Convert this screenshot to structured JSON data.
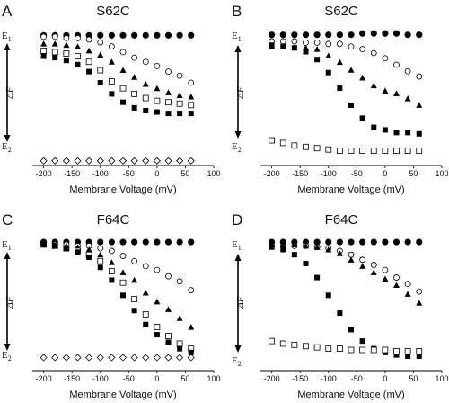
{
  "figure": {
    "panels": [
      {
        "letter": "A",
        "title": "S62C"
      },
      {
        "letter": "B",
        "title": "S62C"
      },
      {
        "letter": "C",
        "title": "F64C"
      },
      {
        "letter": "D",
        "title": "F64C"
      }
    ],
    "energy_labels": {
      "top": "E1",
      "bottom": "E2"
    },
    "delta_f_label": "ΔF"
  },
  "chart_data": [
    {
      "type": "scatter",
      "panel": "A",
      "title": "S62C",
      "xlabel": "Membrane Voltage (mV)",
      "ylabel": "",
      "xlim": [
        -220,
        100
      ],
      "ylim": [
        0.95,
        -0.05
      ],
      "xticks": [
        -200,
        -150,
        -100,
        -50,
        0,
        50,
        100
      ],
      "series": [
        {
          "marker": "filled-circle",
          "x": [
            -200,
            -180,
            -160,
            -140,
            -120,
            -100,
            -80,
            -60,
            -40,
            -20,
            0,
            20,
            40,
            60
          ],
          "y": [
            0.01,
            0.01,
            0.01,
            0.01,
            0.01,
            0.01,
            0.01,
            0.01,
            0.01,
            0.01,
            0.01,
            0.01,
            0.01,
            0.01
          ]
        },
        {
          "marker": "open-circle",
          "x": [
            -200,
            -180,
            -160,
            -140,
            -120,
            -100,
            -80,
            -60,
            -40,
            -20,
            0,
            20,
            40,
            60
          ],
          "y": [
            0.02,
            0.02,
            0.03,
            0.03,
            0.04,
            0.06,
            0.09,
            0.13,
            0.17,
            0.2,
            0.23,
            0.27,
            0.3,
            0.35
          ]
        },
        {
          "marker": "filled-triangle",
          "x": [
            -200,
            -180,
            -160,
            -140,
            -120,
            -100,
            -80,
            -60,
            -40,
            -20,
            0,
            20,
            40,
            60
          ],
          "y": [
            0.07,
            0.07,
            0.08,
            0.09,
            0.12,
            0.15,
            0.2,
            0.26,
            0.31,
            0.36,
            0.39,
            0.42,
            0.44,
            0.45
          ]
        },
        {
          "marker": "open-square",
          "x": [
            -200,
            -180,
            -160,
            -140,
            -120,
            -100,
            -80,
            -60,
            -40,
            -20,
            0,
            20,
            40,
            60
          ],
          "y": [
            0.12,
            0.13,
            0.14,
            0.16,
            0.2,
            0.26,
            0.34,
            0.39,
            0.43,
            0.46,
            0.48,
            0.49,
            0.5,
            0.51
          ]
        },
        {
          "marker": "filled-square",
          "x": [
            -200,
            -180,
            -160,
            -140,
            -120,
            -100,
            -80,
            -60,
            -40,
            -20,
            0,
            20,
            40,
            60
          ],
          "y": [
            0.16,
            0.17,
            0.19,
            0.22,
            0.27,
            0.35,
            0.43,
            0.49,
            0.53,
            0.55,
            0.56,
            0.57,
            0.57,
            0.57
          ]
        },
        {
          "marker": "open-diamond",
          "x": [
            -200,
            -180,
            -160,
            -140,
            -120,
            -100,
            -80,
            -60,
            -40,
            -20,
            0,
            20,
            40,
            60
          ],
          "y": [
            0.91,
            0.91,
            0.91,
            0.91,
            0.91,
            0.91,
            0.91,
            0.91,
            0.91,
            0.91,
            0.91,
            0.91,
            0.91,
            0.91
          ]
        }
      ]
    },
    {
      "type": "scatter",
      "panel": "B",
      "title": "S62C",
      "xlabel": "Membrane Voltage (mV)",
      "ylabel": "",
      "xlim": [
        -220,
        100
      ],
      "ylim": [
        1.02,
        -0.05
      ],
      "xticks": [
        -200,
        -150,
        -100,
        -50,
        0,
        50,
        100
      ],
      "series": [
        {
          "marker": "filled-circle",
          "x": [
            -200,
            -180,
            -160,
            -140,
            -120,
            -100,
            -80,
            -60,
            -40,
            -20,
            0,
            20,
            40,
            60
          ],
          "y": [
            0.01,
            0.01,
            0.01,
            0.01,
            0.01,
            0.01,
            0.01,
            0.01,
            0.0,
            0.0,
            0.0,
            0.0,
            0.01,
            0.01
          ]
        },
        {
          "marker": "open-circle",
          "x": [
            -200,
            -180,
            -160,
            -140,
            -120,
            -100,
            -80,
            -60,
            -40,
            -20,
            0,
            20,
            40,
            60
          ],
          "y": [
            0.06,
            0.06,
            0.06,
            0.07,
            0.07,
            0.08,
            0.08,
            0.1,
            0.12,
            0.15,
            0.19,
            0.24,
            0.29,
            0.33
          ]
        },
        {
          "marker": "filled-triangle",
          "x": [
            -200,
            -180,
            -160,
            -140,
            -120,
            -100,
            -80,
            -60,
            -40,
            -20,
            0,
            20,
            40,
            60
          ],
          "y": [
            0.1,
            0.1,
            0.11,
            0.11,
            0.12,
            0.17,
            0.22,
            0.28,
            0.34,
            0.4,
            0.44,
            0.46,
            0.5,
            0.55
          ]
        },
        {
          "marker": "filled-square",
          "x": [
            -200,
            -180,
            -160,
            -140,
            -120,
            -100,
            -80,
            -60,
            -40,
            -20,
            0,
            20,
            40,
            60
          ],
          "y": [
            0.09,
            0.1,
            0.11,
            0.14,
            0.2,
            0.3,
            0.42,
            0.55,
            0.65,
            0.72,
            0.74,
            0.76,
            0.76,
            0.77
          ]
        },
        {
          "marker": "open-square",
          "x": [
            -200,
            -180,
            -160,
            -140,
            -120,
            -100,
            -80,
            -60,
            -40,
            -20,
            0,
            20,
            40,
            60
          ],
          "y": [
            0.82,
            0.84,
            0.86,
            0.87,
            0.88,
            0.89,
            0.9,
            0.9,
            0.9,
            0.9,
            0.9,
            0.9,
            0.9,
            0.9
          ]
        }
      ]
    },
    {
      "type": "scatter",
      "panel": "C",
      "title": "F64C",
      "xlabel": "Membrane Voltage (mV)",
      "ylabel": "",
      "xlim": [
        -220,
        100
      ],
      "ylim": [
        1.02,
        -0.05
      ],
      "xticks": [
        -200,
        -150,
        -100,
        -50,
        0,
        50,
        100
      ],
      "series": [
        {
          "marker": "filled-circle",
          "x": [
            -200,
            -180,
            -160,
            -140,
            -120,
            -100,
            -80,
            -60,
            -40,
            -20,
            0,
            20,
            40,
            60
          ],
          "y": [
            0.0,
            0.0,
            0.0,
            0.0,
            0.0,
            0.0,
            0.0,
            0.0,
            0.0,
            0.0,
            0.0,
            0.0,
            0.0,
            0.0
          ]
        },
        {
          "marker": "open-circle",
          "x": [
            -200,
            -180,
            -160,
            -140,
            -120,
            -100,
            -80,
            -60,
            -40,
            -20,
            0,
            20,
            40,
            60
          ],
          "y": [
            0.02,
            0.02,
            0.02,
            0.03,
            0.03,
            0.05,
            0.07,
            0.11,
            0.15,
            0.19,
            0.22,
            0.27,
            0.31,
            0.38
          ]
        },
        {
          "marker": "filled-triangle",
          "x": [
            -200,
            -180,
            -160,
            -140,
            -120,
            -100,
            -80,
            -60,
            -40,
            -20,
            0,
            20,
            40,
            60
          ],
          "y": [
            0.02,
            0.03,
            0.03,
            0.04,
            0.06,
            0.1,
            0.16,
            0.24,
            0.3,
            0.4,
            0.47,
            0.53,
            0.6,
            0.67
          ]
        },
        {
          "marker": "open-square",
          "x": [
            -200,
            -180,
            -160,
            -140,
            -120,
            -100,
            -80,
            -60,
            -40,
            -20,
            0,
            20,
            40,
            60
          ],
          "y": [
            0.02,
            0.03,
            0.05,
            0.07,
            0.1,
            0.15,
            0.23,
            0.32,
            0.45,
            0.57,
            0.67,
            0.74,
            0.8,
            0.84
          ]
        },
        {
          "marker": "filled-square",
          "x": [
            -200,
            -180,
            -160,
            -140,
            -120,
            -100,
            -80,
            -60,
            -40,
            -20,
            0,
            20,
            40,
            60
          ],
          "y": [
            0.02,
            0.03,
            0.05,
            0.08,
            0.12,
            0.2,
            0.3,
            0.42,
            0.54,
            0.65,
            0.73,
            0.79,
            0.84,
            0.87
          ]
        },
        {
          "marker": "open-diamond",
          "x": [
            -200,
            -180,
            -160,
            -140,
            -120,
            -100,
            -80,
            -60,
            -40,
            -20,
            0,
            20,
            40,
            60
          ],
          "y": [
            0.91,
            0.91,
            0.91,
            0.91,
            0.91,
            0.91,
            0.91,
            0.91,
            0.91,
            0.91,
            0.91,
            0.91,
            0.91,
            0.91
          ]
        }
      ]
    },
    {
      "type": "scatter",
      "panel": "D",
      "title": "F64C",
      "xlabel": "Membrane Voltage (mV)",
      "ylabel": "",
      "xlim": [
        -220,
        100
      ],
      "ylim": [
        1.02,
        -0.05
      ],
      "xticks": [
        -200,
        -150,
        -100,
        -50,
        0,
        50,
        100
      ],
      "series": [
        {
          "marker": "filled-circle",
          "x": [
            -200,
            -180,
            -160,
            -140,
            -120,
            -100,
            -80,
            -60,
            -40,
            -20,
            0,
            20,
            40,
            60
          ],
          "y": [
            0.0,
            0.0,
            0.0,
            0.0,
            0.0,
            0.0,
            0.0,
            0.0,
            0.0,
            0.0,
            0.0,
            0.0,
            0.0,
            0.0
          ]
        },
        {
          "marker": "open-circle",
          "x": [
            -200,
            -180,
            -160,
            -140,
            -120,
            -100,
            -80,
            -60,
            -40,
            -20,
            0,
            20,
            40,
            60
          ],
          "y": [
            0.03,
            0.03,
            0.03,
            0.03,
            0.04,
            0.05,
            0.07,
            0.1,
            0.14,
            0.18,
            0.22,
            0.28,
            0.33,
            0.39
          ]
        },
        {
          "marker": "filled-triangle",
          "x": [
            -200,
            -180,
            -160,
            -140,
            -120,
            -100,
            -80,
            -60,
            -40,
            -20,
            0,
            20,
            40,
            60
          ],
          "y": [
            0.02,
            0.02,
            0.02,
            0.03,
            0.04,
            0.06,
            0.09,
            0.14,
            0.19,
            0.24,
            0.29,
            0.34,
            0.41,
            0.48
          ]
        },
        {
          "marker": "filled-square",
          "x": [
            -200,
            -180,
            -160,
            -140,
            -120,
            -100,
            -80,
            -60,
            -40,
            -20,
            0,
            20,
            40,
            60
          ],
          "y": [
            0.04,
            0.06,
            0.1,
            0.17,
            0.28,
            0.42,
            0.56,
            0.69,
            0.78,
            0.84,
            0.87,
            0.89,
            0.9,
            0.9
          ]
        },
        {
          "marker": "open-square",
          "x": [
            -200,
            -180,
            -160,
            -140,
            -120,
            -100,
            -80,
            -60,
            -40,
            -20,
            0,
            20,
            40,
            60
          ],
          "y": [
            0.78,
            0.8,
            0.81,
            0.82,
            0.83,
            0.84,
            0.84,
            0.85,
            0.85,
            0.85,
            0.85,
            0.86,
            0.86,
            0.86
          ]
        }
      ]
    }
  ]
}
